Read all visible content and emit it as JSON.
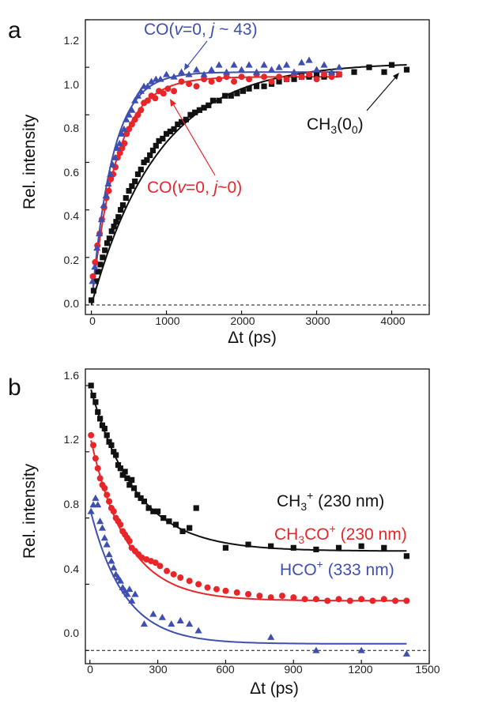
{
  "colors": {
    "black": "#111111",
    "red": "#e8262a",
    "blue": "#3f4fb0",
    "axis": "#111111"
  },
  "chart_data": [
    {
      "panel": "a",
      "type": "scatter",
      "xlabel": "Δt (ps)",
      "ylabel": "Rel. intensity",
      "xlim": [
        -80,
        4500
      ],
      "ylim": [
        -0.04,
        1.2
      ],
      "xticks": [
        0,
        1000,
        2000,
        3000,
        4000
      ],
      "yticks": [
        0.0,
        0.2,
        0.4,
        0.6,
        0.8,
        1.0,
        1.2
      ],
      "reference_line": {
        "y": 0.0,
        "style": "dashed"
      },
      "annotations": [
        {
          "series": "blue",
          "text": "CO(v=0, j ~ 43)"
        },
        {
          "series": "red",
          "text": "CO(v=0, j~0)"
        },
        {
          "series": "black",
          "text": "CH3(0_0)"
        }
      ],
      "series": [
        {
          "color": "black",
          "marker": "square",
          "fit": {
            "A": 1.02,
            "tau": 900
          },
          "x": [
            0,
            30,
            60,
            90,
            120,
            150,
            180,
            210,
            240,
            270,
            300,
            330,
            360,
            390,
            420,
            460,
            500,
            540,
            580,
            620,
            660,
            700,
            740,
            780,
            820,
            860,
            900,
            950,
            1000,
            1050,
            1100,
            1150,
            1200,
            1260,
            1320,
            1380,
            1440,
            1500,
            1560,
            1620,
            1700,
            1780,
            1860,
            1940,
            2020,
            2100,
            2200,
            2300,
            2400,
            2500,
            2600,
            2700,
            2800,
            2900,
            3000,
            3100,
            3200,
            3300,
            3500,
            3700,
            3900,
            4000,
            4200
          ],
          "y": [
            0.02,
            0.06,
            0.1,
            0.14,
            0.17,
            0.2,
            0.23,
            0.26,
            0.28,
            0.31,
            0.33,
            0.35,
            0.37,
            0.4,
            0.42,
            0.45,
            0.48,
            0.5,
            0.52,
            0.55,
            0.57,
            0.6,
            0.61,
            0.63,
            0.65,
            0.67,
            0.69,
            0.7,
            0.72,
            0.73,
            0.74,
            0.76,
            0.77,
            0.78,
            0.8,
            0.81,
            0.82,
            0.83,
            0.84,
            0.86,
            0.86,
            0.88,
            0.88,
            0.89,
            0.9,
            0.91,
            0.92,
            0.92,
            0.93,
            0.94,
            0.95,
            0.95,
            0.96,
            0.96,
            0.97,
            0.96,
            0.97,
            0.97,
            0.98,
            1.0,
            0.98,
            1.01,
            0.99
          ]
        },
        {
          "color": "red",
          "marker": "circle",
          "fit": {
            "A": 0.96,
            "tau": 330
          },
          "x": [
            20,
            50,
            80,
            110,
            140,
            170,
            200,
            230,
            260,
            290,
            320,
            350,
            380,
            410,
            440,
            470,
            500,
            540,
            580,
            620,
            660,
            700,
            750,
            800,
            850,
            900,
            960,
            1020,
            1100,
            1200,
            1300,
            1400,
            1500,
            1600,
            1700,
            1800,
            1900,
            2000,
            2100,
            2200,
            2300,
            2400,
            2500,
            2600,
            2700,
            2800,
            2900,
            3000,
            3100,
            3200,
            3300
          ],
          "y": [
            0.12,
            0.18,
            0.25,
            0.3,
            0.36,
            0.41,
            0.45,
            0.48,
            0.53,
            0.55,
            0.58,
            0.62,
            0.64,
            0.66,
            0.68,
            0.72,
            0.74,
            0.76,
            0.78,
            0.8,
            0.82,
            0.85,
            0.86,
            0.88,
            0.87,
            0.9,
            0.89,
            0.91,
            0.9,
            0.94,
            0.93,
            0.92,
            0.95,
            0.94,
            0.95,
            0.96,
            0.94,
            0.96,
            0.95,
            0.97,
            0.96,
            0.94,
            0.96,
            0.95,
            0.97,
            0.96,
            0.97,
            0.95,
            0.97,
            0.96,
            0.97
          ]
        },
        {
          "color": "blue",
          "marker": "triangle",
          "fit": {
            "A": 0.98,
            "tau": 280
          },
          "x": [
            15,
            45,
            75,
            105,
            135,
            165,
            195,
            225,
            255,
            285,
            315,
            345,
            375,
            405,
            435,
            465,
            500,
            540,
            580,
            620,
            660,
            700,
            750,
            800,
            860,
            920,
            1000,
            1100,
            1200,
            1300,
            1400,
            1500,
            1600,
            1700,
            1800,
            1900,
            2000,
            2100,
            2200,
            2300,
            2400,
            2500,
            2600,
            2700,
            2800,
            2900,
            3000,
            3100,
            3200,
            3300
          ],
          "y": [
            0.1,
            0.16,
            0.24,
            0.3,
            0.36,
            0.42,
            0.46,
            0.51,
            0.55,
            0.59,
            0.62,
            0.66,
            0.68,
            0.72,
            0.74,
            0.78,
            0.8,
            0.82,
            0.86,
            0.88,
            0.9,
            0.92,
            0.92,
            0.94,
            0.95,
            0.95,
            0.97,
            0.96,
            0.98,
            0.97,
            0.99,
            0.97,
            0.99,
            1.01,
            0.98,
            1.01,
            0.99,
            1.01,
            0.98,
            1.01,
            0.99,
            1.0,
            1.01,
            0.98,
            1.02,
            1.03,
            0.99,
            1.01,
            0.98,
            1.0
          ]
        }
      ]
    },
    {
      "panel": "b",
      "type": "scatter",
      "xlabel": "Δt (ps)",
      "ylabel": "Rel. intensity",
      "xlim": [
        -20,
        1500
      ],
      "ylim": [
        -0.08,
        1.7
      ],
      "xticks": [
        0,
        300,
        600,
        900,
        1200,
        1500
      ],
      "yticks": [
        0.0,
        0.4,
        0.8,
        1.2,
        1.6
      ],
      "reference_line": {
        "y": 0.0,
        "style": "dashed"
      },
      "annotations": [
        {
          "series": "black",
          "text": "CH3+ (230 nm)"
        },
        {
          "series": "red",
          "text": "CH3CO+ (230 nm)"
        },
        {
          "series": "blue",
          "text": "HCO+ (333 nm)"
        }
      ],
      "series": [
        {
          "color": "black",
          "marker": "square",
          "fit": {
            "y0": 0.6,
            "A": 1.0,
            "tau": 200
          },
          "x": [
            5,
            15,
            25,
            35,
            45,
            55,
            65,
            75,
            85,
            95,
            105,
            115,
            125,
            135,
            145,
            155,
            165,
            175,
            185,
            195,
            210,
            225,
            240,
            260,
            280,
            300,
            325,
            350,
            380,
            410,
            440,
            470,
            600,
            700,
            800,
            900,
            1000,
            1100,
            1200,
            1300,
            1400
          ],
          "y": [
            1.6,
            1.54,
            1.5,
            1.44,
            1.4,
            1.36,
            1.34,
            1.3,
            1.26,
            1.24,
            1.2,
            1.18,
            1.12,
            1.1,
            1.06,
            1.08,
            1.04,
            1.0,
            1.03,
            0.98,
            0.94,
            0.92,
            0.9,
            0.86,
            0.84,
            0.84,
            0.8,
            0.78,
            0.76,
            0.72,
            0.74,
            0.86,
            0.62,
            0.64,
            0.63,
            0.62,
            0.61,
            0.62,
            0.63,
            0.62,
            0.57
          ]
        },
        {
          "color": "red",
          "marker": "circle",
          "fit": {
            "y0": 0.3,
            "A": 1.0,
            "tau": 160
          },
          "x": [
            5,
            15,
            25,
            35,
            45,
            55,
            65,
            75,
            85,
            95,
            105,
            115,
            125,
            135,
            145,
            155,
            165,
            175,
            185,
            200,
            215,
            230,
            250,
            270,
            290,
            310,
            340,
            370,
            400,
            440,
            480,
            520,
            560,
            600,
            650,
            700,
            750,
            800,
            850,
            900,
            950,
            1000,
            1050,
            1100,
            1150,
            1200,
            1250,
            1300,
            1350,
            1400
          ],
          "y": [
            1.3,
            1.24,
            1.16,
            1.1,
            1.04,
            1.0,
            0.98,
            0.94,
            0.9,
            0.86,
            0.84,
            0.8,
            0.78,
            0.76,
            0.72,
            0.7,
            0.68,
            0.66,
            0.62,
            0.6,
            0.58,
            0.56,
            0.55,
            0.54,
            0.53,
            0.51,
            0.48,
            0.46,
            0.44,
            0.42,
            0.4,
            0.38,
            0.37,
            0.36,
            0.35,
            0.34,
            0.33,
            0.32,
            0.33,
            0.32,
            0.31,
            0.31,
            0.3,
            0.31,
            0.3,
            0.31,
            0.3,
            0.31,
            0.3,
            0.3
          ]
        },
        {
          "color": "blue",
          "marker": "triangle",
          "fit": {
            "y0": 0.04,
            "A": 0.82,
            "tau": 150
          },
          "x": [
            5,
            15,
            25,
            35,
            45,
            55,
            65,
            75,
            85,
            95,
            105,
            115,
            125,
            135,
            145,
            155,
            165,
            175,
            185,
            200,
            240,
            280,
            320,
            360,
            400,
            440,
            480,
            800,
            1000,
            1200,
            1400
          ],
          "y": [
            0.84,
            0.88,
            0.92,
            0.88,
            0.78,
            0.74,
            0.68,
            0.64,
            0.58,
            0.54,
            0.5,
            0.46,
            0.44,
            0.42,
            0.38,
            0.36,
            0.34,
            0.37,
            0.3,
            0.34,
            0.16,
            0.22,
            0.2,
            0.16,
            0.18,
            0.16,
            0.12,
            0.08,
            0.0,
            0.0,
            -0.02
          ]
        }
      ]
    }
  ],
  "panel_a": {
    "letter": "a",
    "ylabel": "Rel. intensity",
    "xlabel": "Δt (ps)",
    "ytick_labels": [
      "0.0",
      "0.2",
      "0.4",
      "0.6",
      "0.8",
      "1.0",
      "1.2"
    ],
    "xtick_labels": [
      "0",
      "1000",
      "2000",
      "3000",
      "4000"
    ],
    "ann_blue_1": "CO(",
    "ann_blue_v": "v",
    "ann_blue_2": "=0, ",
    "ann_blue_j": "j",
    "ann_blue_3": " ~ 43)",
    "ann_red_1": "CO(",
    "ann_red_v": "v",
    "ann_red_2": "=0, ",
    "ann_red_j": "j",
    "ann_red_3": "~0)",
    "ann_black_1": "CH",
    "ann_black_sub1": "3",
    "ann_black_2": "(0",
    "ann_black_sub2": "0",
    "ann_black_3": ")"
  },
  "panel_b": {
    "letter": "b",
    "ylabel": "Rel. intensity",
    "xlabel": "Δt (ps)",
    "ytick_labels": [
      "0.0",
      "0.4",
      "0.8",
      "1.2",
      "1.6"
    ],
    "xtick_labels": [
      "0",
      "300",
      "600",
      "900",
      "1200",
      "1500"
    ],
    "ann_black_1": "CH",
    "ann_black_sub": "3",
    "ann_black_sup": "+",
    "ann_black_2": " (230 nm)",
    "ann_red_1": "CH",
    "ann_red_sub": "3",
    "ann_red_2": "CO",
    "ann_red_sup": "+",
    "ann_red_3": " (230 nm)",
    "ann_blue_1": "HCO",
    "ann_blue_sup": "+",
    "ann_blue_2": " (333 nm)"
  }
}
